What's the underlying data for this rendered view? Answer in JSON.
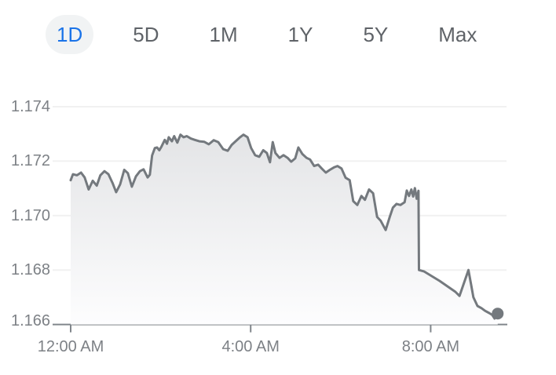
{
  "tabs": {
    "items": [
      {
        "id": "1d",
        "label": "1D",
        "active": true
      },
      {
        "id": "5d",
        "label": "5D",
        "active": false
      },
      {
        "id": "1m",
        "label": "1M",
        "active": false
      },
      {
        "id": "1y",
        "label": "1Y",
        "active": false
      },
      {
        "id": "5y",
        "label": "5Y",
        "active": false
      },
      {
        "id": "max",
        "label": "Max",
        "active": false
      }
    ]
  },
  "colors": {
    "tab_text": "#5f6368",
    "tab_active_text": "#1a73e8",
    "tab_active_bg": "#f1f3f4",
    "line": "#74797e",
    "dot": "#74797e",
    "grid": "#f1f1f1",
    "axis": "#80868b",
    "axis_label": "#7d8186",
    "fill_top": "#e2e3e5",
    "fill_bottom": "#fdfdfe"
  },
  "chart_data": {
    "type": "area",
    "title": "Intraday exchange rate (1D view)",
    "x_unit": "hours since midnight",
    "xlim": [
      0,
      9.7
    ],
    "ylim": [
      1.166,
      1.174
    ],
    "grid": true,
    "last_price": 1.1664,
    "yticks": [
      {
        "value": 1.174,
        "label": "1.174",
        "axis": false
      },
      {
        "value": 1.172,
        "label": "1.172",
        "axis": false
      },
      {
        "value": 1.17,
        "label": "1.170",
        "axis": false
      },
      {
        "value": 1.168,
        "label": "1.168",
        "axis": false
      },
      {
        "value": 1.166,
        "label": "1.166",
        "axis": true
      }
    ],
    "xticks": [
      {
        "hour": 0,
        "label": "12:00 AM"
      },
      {
        "hour": 4,
        "label": "4:00 AM"
      },
      {
        "hour": 8,
        "label": "8:00 AM"
      }
    ],
    "series": [
      {
        "name": "price",
        "points": [
          [
            0.0,
            1.1713
          ],
          [
            0.05,
            1.17152
          ],
          [
            0.14,
            1.17148
          ],
          [
            0.23,
            1.17158
          ],
          [
            0.31,
            1.1714
          ],
          [
            0.4,
            1.17096
          ],
          [
            0.49,
            1.17128
          ],
          [
            0.58,
            1.1711
          ],
          [
            0.66,
            1.17148
          ],
          [
            0.75,
            1.17163
          ],
          [
            0.84,
            1.17152
          ],
          [
            0.93,
            1.1712
          ],
          [
            1.01,
            1.17086
          ],
          [
            1.1,
            1.17115
          ],
          [
            1.19,
            1.17168
          ],
          [
            1.27,
            1.17156
          ],
          [
            1.36,
            1.17106
          ],
          [
            1.45,
            1.17144
          ],
          [
            1.54,
            1.17163
          ],
          [
            1.62,
            1.1717
          ],
          [
            1.71,
            1.1714
          ],
          [
            1.76,
            1.1715
          ],
          [
            1.81,
            1.17221
          ],
          [
            1.87,
            1.17248
          ],
          [
            1.92,
            1.1725
          ],
          [
            1.97,
            1.1724
          ],
          [
            2.02,
            1.17254
          ],
          [
            2.09,
            1.17278
          ],
          [
            2.14,
            1.17264
          ],
          [
            2.18,
            1.17288
          ],
          [
            2.25,
            1.17273
          ],
          [
            2.3,
            1.17292
          ],
          [
            2.37,
            1.17268
          ],
          [
            2.44,
            1.17297
          ],
          [
            2.51,
            1.17288
          ],
          [
            2.58,
            1.17292
          ],
          [
            2.67,
            1.17283
          ],
          [
            2.76,
            1.17278
          ],
          [
            2.86,
            1.17273
          ],
          [
            2.97,
            1.17271
          ],
          [
            3.07,
            1.17262
          ],
          [
            3.18,
            1.17277
          ],
          [
            3.28,
            1.1727
          ],
          [
            3.39,
            1.17244
          ],
          [
            3.49,
            1.17238
          ],
          [
            3.58,
            1.1726
          ],
          [
            3.66,
            1.17272
          ],
          [
            3.75,
            1.17286
          ],
          [
            3.84,
            1.17297
          ],
          [
            3.93,
            1.17288
          ],
          [
            4.01,
            1.17248
          ],
          [
            4.1,
            1.17222
          ],
          [
            4.19,
            1.17216
          ],
          [
            4.28,
            1.1724
          ],
          [
            4.36,
            1.1723
          ],
          [
            4.43,
            1.17196
          ],
          [
            4.49,
            1.1727
          ],
          [
            4.55,
            1.1723
          ],
          [
            4.64,
            1.17212
          ],
          [
            4.73,
            1.17222
          ],
          [
            4.82,
            1.17212
          ],
          [
            4.9,
            1.17198
          ],
          [
            4.99,
            1.1721
          ],
          [
            5.06,
            1.1725
          ],
          [
            5.15,
            1.17226
          ],
          [
            5.24,
            1.17212
          ],
          [
            5.32,
            1.17206
          ],
          [
            5.41,
            1.17182
          ],
          [
            5.5,
            1.17187
          ],
          [
            5.58,
            1.17173
          ],
          [
            5.67,
            1.17158
          ],
          [
            5.76,
            1.17168
          ],
          [
            5.85,
            1.17177
          ],
          [
            5.93,
            1.17182
          ],
          [
            6.02,
            1.17173
          ],
          [
            6.11,
            1.17139
          ],
          [
            6.2,
            1.1713
          ],
          [
            6.28,
            1.17053
          ],
          [
            6.37,
            1.17039
          ],
          [
            6.46,
            1.17072
          ],
          [
            6.54,
            1.17058
          ],
          [
            6.63,
            1.17096
          ],
          [
            6.72,
            1.17082
          ],
          [
            6.81,
            1.16995
          ],
          [
            6.89,
            1.16981
          ],
          [
            7.0,
            1.16947
          ],
          [
            7.09,
            1.16995
          ],
          [
            7.16,
            1.17029
          ],
          [
            7.24,
            1.17043
          ],
          [
            7.33,
            1.17039
          ],
          [
            7.42,
            1.17049
          ],
          [
            7.47,
            1.17092
          ],
          [
            7.52,
            1.17072
          ],
          [
            7.57,
            1.17096
          ],
          [
            7.61,
            1.1707
          ],
          [
            7.65,
            1.17101
          ],
          [
            7.69,
            1.17062
          ],
          [
            7.73,
            1.17091
          ],
          [
            7.74,
            1.168
          ],
          [
            7.85,
            1.16795
          ],
          [
            8.2,
            1.1676
          ],
          [
            8.55,
            1.1672
          ],
          [
            8.64,
            1.16705
          ],
          [
            8.84,
            1.168
          ],
          [
            8.9,
            1.16745
          ],
          [
            8.95,
            1.167
          ],
          [
            9.04,
            1.16668
          ],
          [
            9.13,
            1.1666
          ],
          [
            9.21,
            1.1665
          ],
          [
            9.3,
            1.16642
          ],
          [
            9.37,
            1.16635
          ],
          [
            9.42,
            1.16622
          ],
          [
            9.49,
            1.1664
          ]
        ]
      }
    ]
  }
}
